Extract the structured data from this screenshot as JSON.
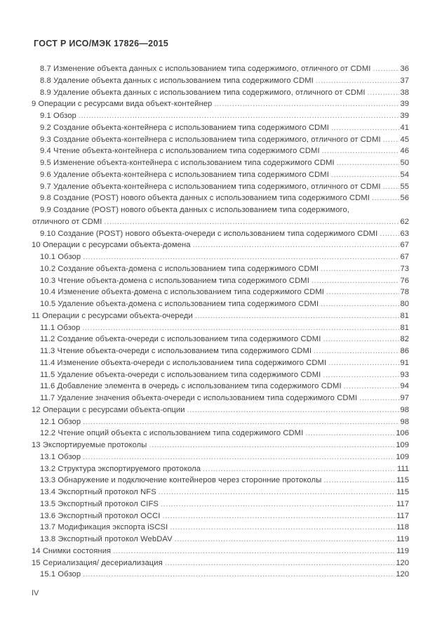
{
  "header": {
    "title": "ГОСТ Р ИСО/МЭК 17826—2015"
  },
  "toc": {
    "entries": [
      {
        "level": "sub",
        "text": "8.7 Изменение объекта данных с использованием типа содержимого, отличного от CDMI",
        "page": "36"
      },
      {
        "level": "sub",
        "text": "8.8 Удаление объекта данных с использованием типа содержимого CDMI",
        "page": "37"
      },
      {
        "level": "sub",
        "text": "8.9 Удаление объекта данных с использованием типа содержимого, отличного от CDMI",
        "page": "38"
      },
      {
        "level": "ch",
        "text": "9 Операции с ресурсами вида объект-контейнер",
        "page": "39"
      },
      {
        "level": "sub",
        "text": "9.1 Обзор",
        "page": "39"
      },
      {
        "level": "sub",
        "text": "9.2 Создание объекта-контейнера с использованием типа содержимого CDMI",
        "page": "41"
      },
      {
        "level": "sub",
        "text": "9.3 Создание объекта-контейнера с использованием типа содержимого, отличного от CDMI",
        "page": "45"
      },
      {
        "level": "sub",
        "text": "9.4 Чтение объекта-контейнера с использованием типа содержимого CDMI",
        "page": "46"
      },
      {
        "level": "sub",
        "text": "9.5 Изменение объекта-контейнера с использованием типа содержимого CDMI",
        "page": "50"
      },
      {
        "level": "sub",
        "text": "9.6 Удаление объекта-контейнера с использованием типа содержимого CDMI",
        "page": "54"
      },
      {
        "level": "sub",
        "text": "9.7 Удаление объекта-контейнера с использованием типа содержимого, отличного от CDMI",
        "page": "55"
      },
      {
        "level": "sub",
        "text": "9.8 Создание (POST) нового объекта данных с использованием типа содержимого CDMI",
        "page": "56"
      },
      {
        "level": "sub",
        "text": "9.9 Создание (POST) нового объекта данных с использованием типа содержимого,",
        "page": ""
      },
      {
        "level": "cont",
        "text": "отличного от CDMI",
        "page": "62"
      },
      {
        "level": "sub",
        "text": "9.10 Создание (POST) нового объекта-очереди с использованием типа содержимого CDMI",
        "page": "63"
      },
      {
        "level": "ch",
        "text": "10 Операции с ресурсами объекта-домена",
        "page": "67"
      },
      {
        "level": "sub",
        "text": "10.1 Обзор",
        "page": "67"
      },
      {
        "level": "sub",
        "text": "10.2 Создание объекта-домена с использованием типа содержимого CDMI",
        "page": "73"
      },
      {
        "level": "sub",
        "text": "10.3 Чтение объекта-домена с использованием типа содержимого CDMI",
        "page": "76"
      },
      {
        "level": "sub",
        "text": "10.4 Изменение объекта-домена с использованием типа содержимого CDMI",
        "page": "78"
      },
      {
        "level": "sub",
        "text": "10.5 Удаление объекта-домена с использованием типа содержимого CDMI",
        "page": "80"
      },
      {
        "level": "ch",
        "text": "11 Операции с ресурсами объекта-очереди",
        "page": "81"
      },
      {
        "level": "sub",
        "text": "11.1 Обзор",
        "page": "81"
      },
      {
        "level": "sub",
        "text": "11.2 Создание объекта-очереди с использованием типа содержимого CDMI",
        "page": "82"
      },
      {
        "level": "sub",
        "text": "11.3 Чтение объекта-очереди с использованием типа содержимого CDMI",
        "page": "86"
      },
      {
        "level": "sub",
        "text": "11.4 Изменение объекта-очереди с использованием типа содержимого CDMI",
        "page": "91"
      },
      {
        "level": "sub",
        "text": "11.5 Удаление объекта-очереди с использованием типа содержимого CDMI",
        "page": "93"
      },
      {
        "level": "sub",
        "text": "11.6 Добавление элемента в очередь с использованием типа содержимого CDMI",
        "page": "94"
      },
      {
        "level": "sub",
        "text": "11.7 Удаление значения объекта-очереди с использованием типа содержимого CDMI",
        "page": "97"
      },
      {
        "level": "ch",
        "text": "12 Операции с ресурсами объекта-опции",
        "page": "98"
      },
      {
        "level": "sub",
        "text": "12.1 Обзор",
        "page": "98"
      },
      {
        "level": "sub",
        "text": "12.2 Чтение опций объекта с использованием типа содержимого CDMI",
        "page": "106"
      },
      {
        "level": "ch",
        "text": "13 Экспортируемые протоколы",
        "page": "109"
      },
      {
        "level": "sub",
        "text": "13.1 Обзор",
        "page": "109"
      },
      {
        "level": "sub",
        "text": "13.2 Структура экспортируемого протокола",
        "page": "111"
      },
      {
        "level": "sub",
        "text": "13.3 Обнаружение и подключение контейнеров через сторонние протоколы",
        "page": "115"
      },
      {
        "level": "sub",
        "text": "13.4 Экспортный протокол NFS",
        "page": "115"
      },
      {
        "level": "sub",
        "text": "13.5 Экспортный протокол CIFS",
        "page": "117"
      },
      {
        "level": "sub",
        "text": "13.6 Экспортный протокол OCCI",
        "page": "117"
      },
      {
        "level": "sub",
        "text": "13.7 Модификация экспорта iSCSI",
        "page": "118"
      },
      {
        "level": "sub",
        "text": "13.8 Экспортный протокол WebDAV",
        "page": "119"
      },
      {
        "level": "ch",
        "text": "14 Снимки состояния",
        "page": "119"
      },
      {
        "level": "ch",
        "text": "15 Сериализация/ десериализация",
        "page": "120"
      },
      {
        "level": "sub",
        "text": "15.1 Обзор",
        "page": "120"
      }
    ]
  },
  "footer": {
    "page_label": "IV"
  },
  "colors": {
    "text": "#3f3f3f",
    "leader_dots": "#8a8a8a",
    "background": "#ffffff"
  }
}
